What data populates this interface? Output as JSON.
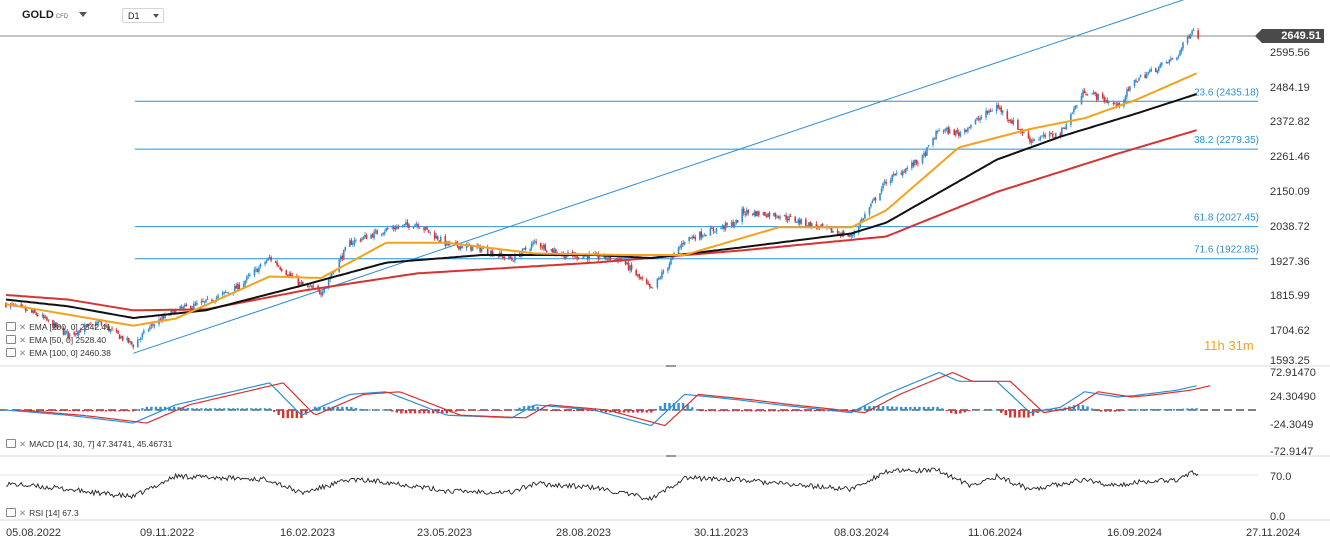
{
  "header": {
    "symbol": "GOLD",
    "symbol_suffix": "CFD",
    "timeframe": "D1"
  },
  "current_price": "2649.51",
  "countdown": {
    "hours": "11",
    "h": "h",
    "minutes": "31",
    "m": "m"
  },
  "legend": {
    "ema200": "EMA [200, 0] 2342.41",
    "ema50": "EMA [50, 0] 2528.40",
    "ema100": "EMA [100, 0] 2460.38",
    "macd": "MACD [14, 30, 7] 47.34741,   45.46731",
    "rsi": "RSI [14] 67.3"
  },
  "colors": {
    "ema50": "#f2a21b",
    "ema100": "#111111",
    "ema200": "#d93030",
    "fib": "#2e8fd4",
    "trend": "#2e8fd4",
    "up": "#2e8fd4",
    "down": "#d93030"
  },
  "chart_data": [
    {
      "type": "candlestick",
      "title": "GOLD CFD D1",
      "x_ticks": [
        "05.08.2022",
        "09.11.2022",
        "16.02.2023",
        "23.05.2023",
        "28.08.2023",
        "30.11.2023",
        "08.03.2024",
        "11.06.2024",
        "16.09.2024",
        "27.11.2024"
      ],
      "y_ticks": [
        "2595.56",
        "2484.19",
        "2372.82",
        "2261.46",
        "2150.09",
        "2038.72",
        "1927.36",
        "1815.99",
        "1704.62",
        "1593.25"
      ],
      "ylim": [
        1593.25,
        2650
      ],
      "last_price": 2649.51,
      "fibonacci": [
        {
          "label": "23.6 (2435.18)",
          "level": 2435.18
        },
        {
          "label": "38.2 (2279.35)",
          "level": 2279.35
        },
        {
          "label": "61.8 (2027.45)",
          "level": 2027.45
        },
        {
          "label": "71.6 (1922.85)",
          "level": 1922.85
        }
      ],
      "trend_line": {
        "from": {
          "date": "2022-10-28",
          "price": 1615
        },
        "to": {
          "date": "2024-09-26",
          "price": 2775
        }
      },
      "close_path": [
        [
          "2022-08-05",
          1776
        ],
        [
          "2022-08-26",
          1740
        ],
        [
          "2022-09-15",
          1675
        ],
        [
          "2022-10-05",
          1715
        ],
        [
          "2022-10-28",
          1642
        ],
        [
          "2022-11-09",
          1705
        ],
        [
          "2022-11-25",
          1755
        ],
        [
          "2022-12-15",
          1780
        ],
        [
          "2023-01-05",
          1830
        ],
        [
          "2023-01-26",
          1925
        ],
        [
          "2023-02-16",
          1838
        ],
        [
          "2023-03-01",
          1815
        ],
        [
          "2023-03-20",
          1975
        ],
        [
          "2023-04-13",
          2018
        ],
        [
          "2023-05-03",
          2038
        ],
        [
          "2023-05-23",
          1970
        ],
        [
          "2023-06-15",
          1955
        ],
        [
          "2023-07-05",
          1920
        ],
        [
          "2023-07-20",
          1975
        ],
        [
          "2023-08-08",
          1935
        ],
        [
          "2023-08-28",
          1930
        ],
        [
          "2023-09-15",
          1920
        ],
        [
          "2023-10-05",
          1820
        ],
        [
          "2023-10-27",
          1985
        ],
        [
          "2023-11-30",
          2040
        ],
        [
          "2023-12-04",
          2075
        ],
        [
          "2023-12-28",
          2065
        ],
        [
          "2024-01-20",
          2030
        ],
        [
          "2024-02-14",
          1995
        ],
        [
          "2024-03-08",
          2175
        ],
        [
          "2024-04-01",
          2250
        ],
        [
          "2024-04-12",
          2345
        ],
        [
          "2024-04-25",
          2330
        ],
        [
          "2024-05-20",
          2420
        ],
        [
          "2024-06-11",
          2310
        ],
        [
          "2024-07-01",
          2330
        ],
        [
          "2024-07-17",
          2470
        ],
        [
          "2024-08-08",
          2420
        ],
        [
          "2024-08-20",
          2505
        ],
        [
          "2024-09-16",
          2580
        ],
        [
          "2024-09-26",
          2670
        ],
        [
          "2024-09-30",
          2649.51
        ]
      ],
      "ema50": [
        [
          "2022-08-05",
          1775
        ],
        [
          "2022-10-28",
          1705
        ],
        [
          "2022-11-25",
          1728
        ],
        [
          "2023-01-26",
          1865
        ],
        [
          "2023-03-01",
          1860
        ],
        [
          "2023-04-13",
          1975
        ],
        [
          "2023-05-23",
          1975
        ],
        [
          "2023-07-20",
          1940
        ],
        [
          "2023-09-15",
          1935
        ],
        [
          "2023-10-27",
          1935
        ],
        [
          "2023-12-28",
          2025
        ],
        [
          "2024-02-14",
          2025
        ],
        [
          "2024-03-08",
          2080
        ],
        [
          "2024-04-25",
          2285
        ],
        [
          "2024-06-11",
          2345
        ],
        [
          "2024-07-17",
          2380
        ],
        [
          "2024-08-20",
          2440
        ],
        [
          "2024-09-30",
          2528.4
        ]
      ],
      "ema100": [
        [
          "2022-08-05",
          1790
        ],
        [
          "2022-09-15",
          1768
        ],
        [
          "2022-10-28",
          1730
        ],
        [
          "2022-12-15",
          1755
        ],
        [
          "2023-02-16",
          1835
        ],
        [
          "2023-04-13",
          1910
        ],
        [
          "2023-06-15",
          1935
        ],
        [
          "2023-08-28",
          1935
        ],
        [
          "2023-10-05",
          1925
        ],
        [
          "2023-12-04",
          1960
        ],
        [
          "2024-02-14",
          2005
        ],
        [
          "2024-03-08",
          2040
        ],
        [
          "2024-05-20",
          2245
        ],
        [
          "2024-07-01",
          2320
        ],
        [
          "2024-08-20",
          2395
        ],
        [
          "2024-09-30",
          2460.38
        ]
      ],
      "ema200": [
        [
          "2022-08-05",
          1805
        ],
        [
          "2022-09-15",
          1790
        ],
        [
          "2022-10-28",
          1755
        ],
        [
          "2022-12-15",
          1758
        ],
        [
          "2023-02-16",
          1818
        ],
        [
          "2023-05-03",
          1875
        ],
        [
          "2023-08-28",
          1910
        ],
        [
          "2023-12-04",
          1950
        ],
        [
          "2024-03-08",
          1995
        ],
        [
          "2024-05-20",
          2140
        ],
        [
          "2024-08-08",
          2265
        ],
        [
          "2024-09-30",
          2342.41
        ]
      ]
    },
    {
      "type": "bar",
      "title": "MACD [14, 30, 7]",
      "y_ticks": [
        "72.91470",
        "24.30490",
        "-24.3049",
        "-72.9147"
      ],
      "ylim": [
        -80,
        80
      ],
      "macd_last": 47.34741,
      "signal_last": 45.46731,
      "macd_path": [
        [
          "2022-08-05",
          0
        ],
        [
          "2022-09-15",
          -10
        ],
        [
          "2022-10-28",
          -25
        ],
        [
          "2022-11-25",
          10
        ],
        [
          "2023-01-26",
          52
        ],
        [
          "2023-02-16",
          -10
        ],
        [
          "2023-03-20",
          30
        ],
        [
          "2023-04-13",
          35
        ],
        [
          "2023-05-23",
          -10
        ],
        [
          "2023-07-05",
          -15
        ],
        [
          "2023-07-20",
          10
        ],
        [
          "2023-08-28",
          0
        ],
        [
          "2023-10-05",
          -30
        ],
        [
          "2023-10-27",
          30
        ],
        [
          "2023-11-30",
          20
        ],
        [
          "2023-12-28",
          10
        ],
        [
          "2024-02-14",
          -5
        ],
        [
          "2024-03-08",
          30
        ],
        [
          "2024-04-12",
          72
        ],
        [
          "2024-04-25",
          55
        ],
        [
          "2024-05-20",
          55
        ],
        [
          "2024-06-11",
          -5
        ],
        [
          "2024-07-01",
          5
        ],
        [
          "2024-07-17",
          35
        ],
        [
          "2024-08-08",
          25
        ],
        [
          "2024-08-20",
          28
        ],
        [
          "2024-09-16",
          38
        ],
        [
          "2024-09-30",
          47.35
        ]
      ]
    },
    {
      "type": "line",
      "title": "RSI [14]",
      "y_ticks": [
        "70.0",
        "0.0"
      ],
      "ylim": [
        0,
        100
      ],
      "last": 67.3,
      "rsi_path": [
        [
          "2022-08-05",
          55
        ],
        [
          "2022-09-15",
          45
        ],
        [
          "2022-10-05",
          38
        ],
        [
          "2022-10-28",
          32
        ],
        [
          "2022-11-25",
          68
        ],
        [
          "2023-01-26",
          62
        ],
        [
          "2023-02-16",
          38
        ],
        [
          "2023-03-20",
          62
        ],
        [
          "2023-04-13",
          58
        ],
        [
          "2023-05-23",
          42
        ],
        [
          "2023-07-05",
          40
        ],
        [
          "2023-07-20",
          55
        ],
        [
          "2023-08-28",
          48
        ],
        [
          "2023-10-05",
          28
        ],
        [
          "2023-10-27",
          65
        ],
        [
          "2023-11-30",
          62
        ],
        [
          "2023-12-28",
          55
        ],
        [
          "2024-02-14",
          45
        ],
        [
          "2024-03-08",
          76
        ],
        [
          "2024-04-12",
          78
        ],
        [
          "2024-05-03",
          50
        ],
        [
          "2024-05-20",
          68
        ],
        [
          "2024-06-11",
          45
        ],
        [
          "2024-07-17",
          62
        ],
        [
          "2024-08-08",
          50
        ],
        [
          "2024-08-20",
          58
        ],
        [
          "2024-09-16",
          62
        ],
        [
          "2024-09-26",
          75
        ],
        [
          "2024-09-30",
          67.3
        ]
      ]
    }
  ]
}
